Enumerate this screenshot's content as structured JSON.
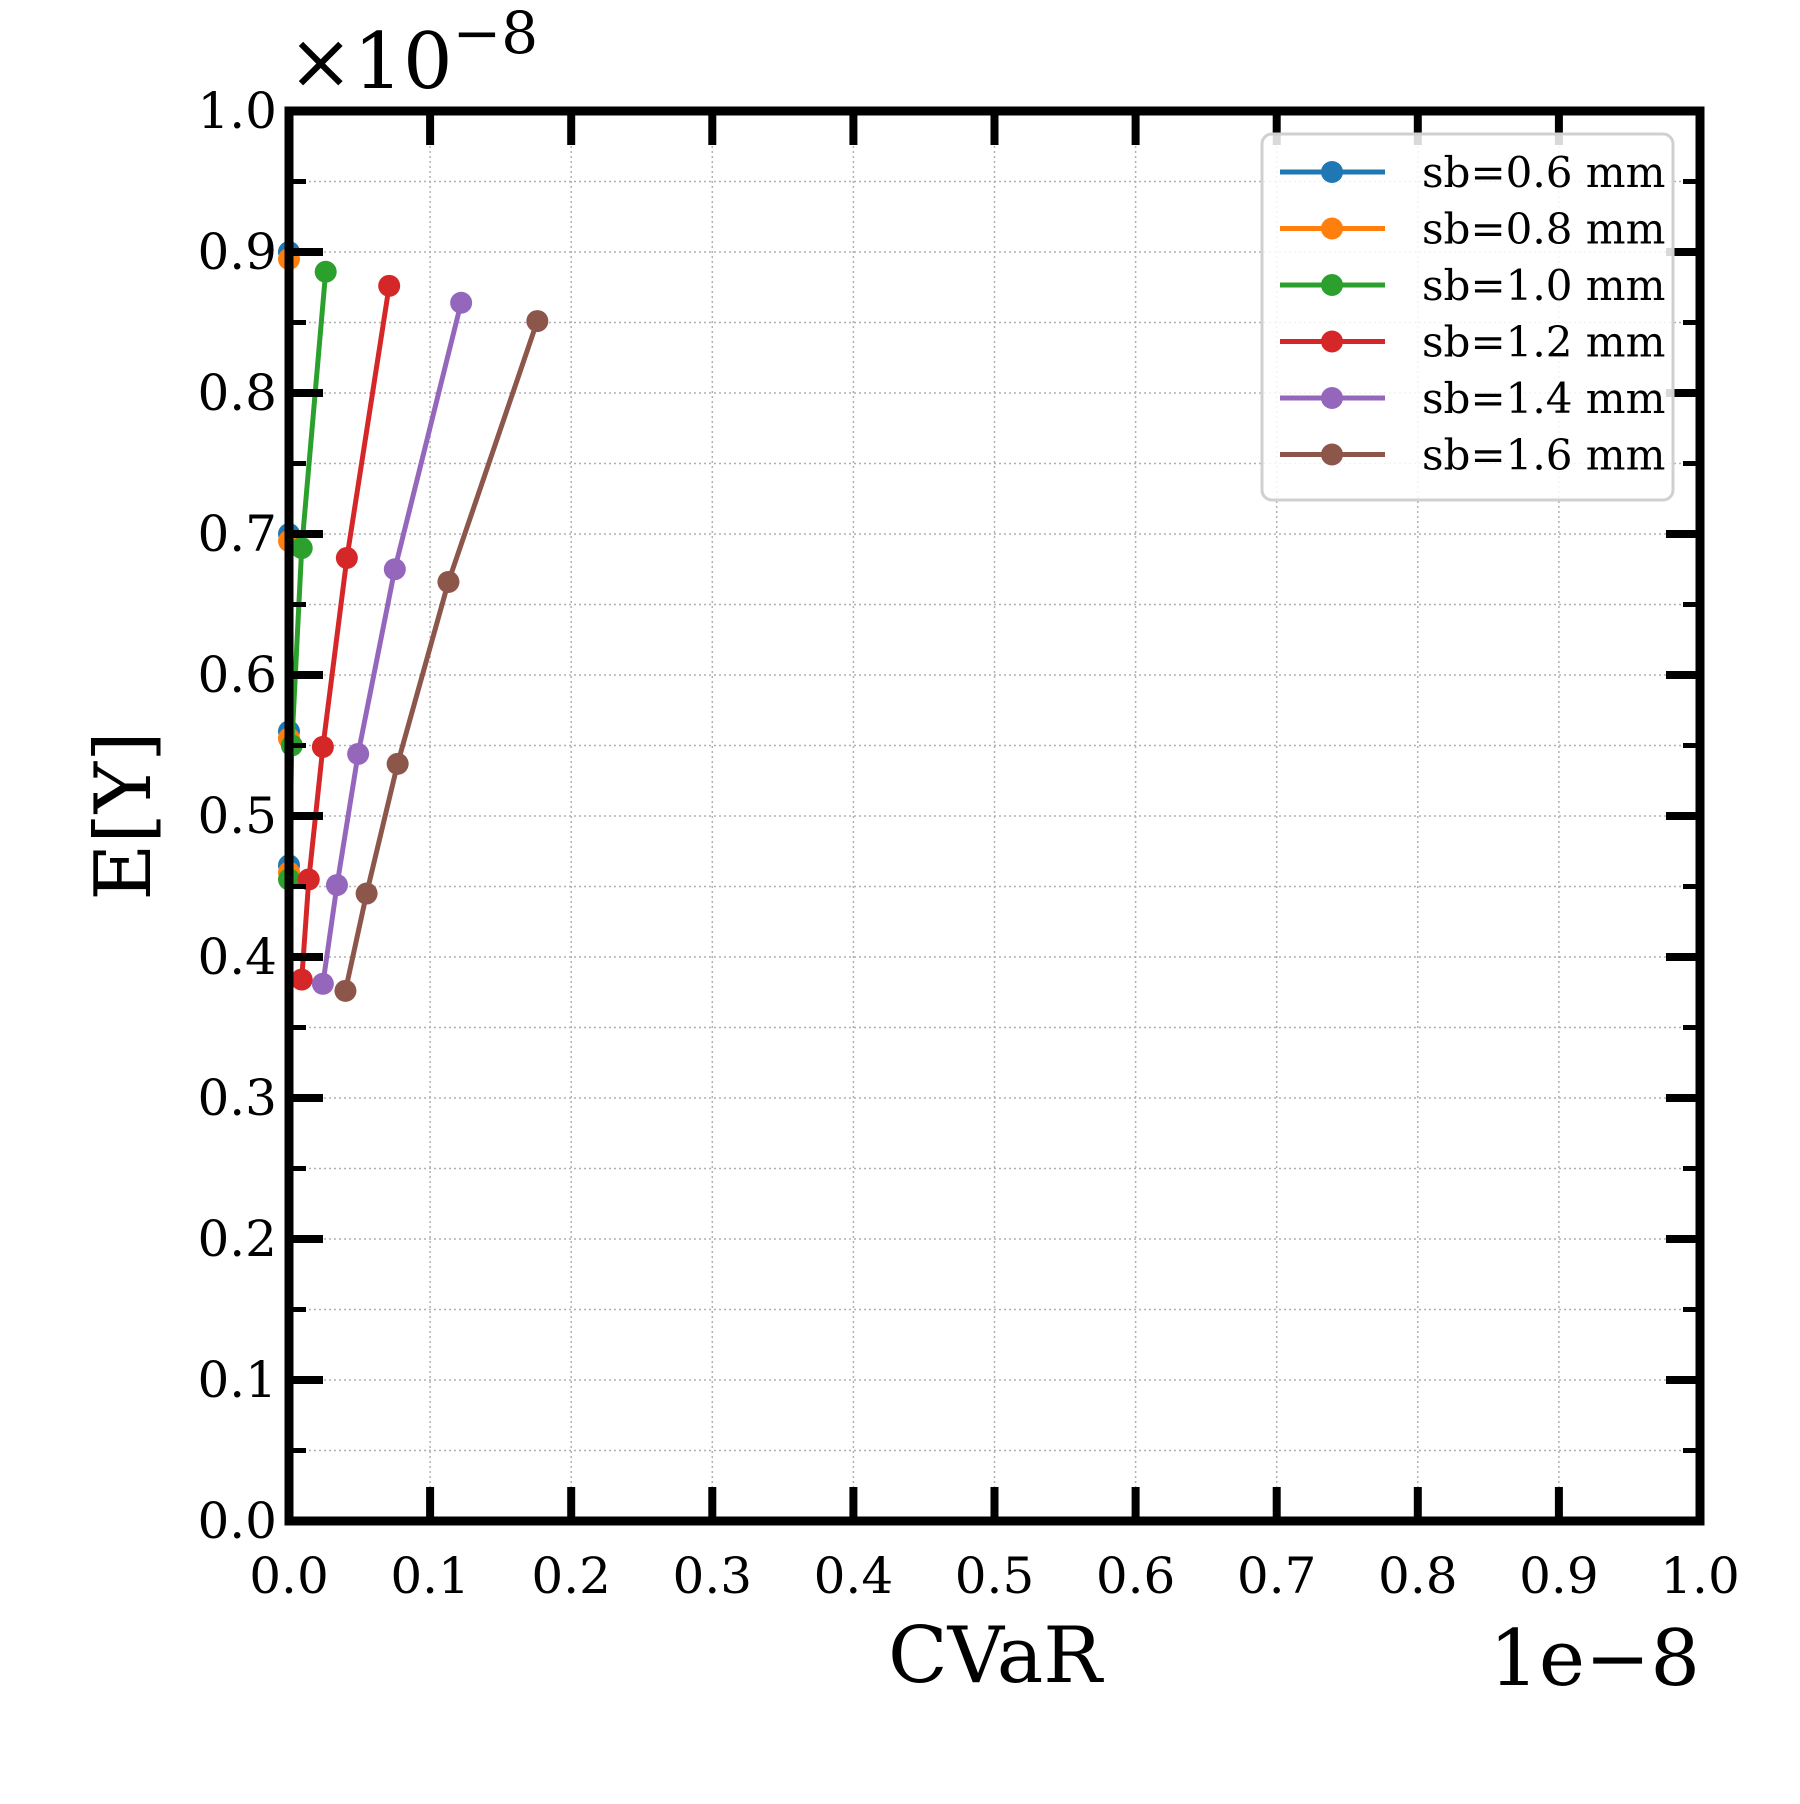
{
  "chart_data": {
    "type": "line",
    "xlabel": "CVaR",
    "ylabel": "E[Y]",
    "x_offset_text": "1e−8",
    "y_offset_text": "×10",
    "y_offset_exp": "−8",
    "xlim": [
      0.0,
      1.0
    ],
    "ylim": [
      0.0,
      1.0
    ],
    "xticks": [
      "0.0",
      "0.1",
      "0.2",
      "0.3",
      "0.4",
      "0.5",
      "0.6",
      "0.7",
      "0.8",
      "0.9",
      "1.0"
    ],
    "yticks": [
      "0.0",
      "0.1",
      "0.2",
      "0.3",
      "0.4",
      "0.5",
      "0.6",
      "0.7",
      "0.8",
      "0.9",
      "1.0"
    ],
    "grid": true,
    "legend_position": "top-right",
    "series": [
      {
        "name": "sb=0.6 mm",
        "color": "#1f77b4",
        "points": [
          [
            0.0,
            0.9
          ],
          [
            0.0,
            0.7
          ],
          [
            0.0,
            0.56
          ],
          [
            0.0,
            0.465
          ]
        ]
      },
      {
        "name": "sb=0.8 mm",
        "color": "#ff7f0e",
        "points": [
          [
            0.0,
            0.895
          ],
          [
            0.0,
            0.695
          ],
          [
            0.0,
            0.555
          ],
          [
            0.0,
            0.46
          ]
        ]
      },
      {
        "name": "sb=1.0 mm",
        "color": "#2ca02c",
        "points": [
          [
            0.026,
            0.886
          ],
          [
            0.009,
            0.69
          ],
          [
            0.002,
            0.55
          ],
          [
            0.0,
            0.455
          ]
        ]
      },
      {
        "name": "sb=1.2 mm",
        "color": "#d62728",
        "points": [
          [
            0.071,
            0.876
          ],
          [
            0.041,
            0.683
          ],
          [
            0.024,
            0.549
          ],
          [
            0.014,
            0.455
          ],
          [
            0.009,
            0.384
          ]
        ]
      },
      {
        "name": "sb=1.4 mm",
        "color": "#9467bd",
        "points": [
          [
            0.122,
            0.864
          ],
          [
            0.075,
            0.675
          ],
          [
            0.049,
            0.544
          ],
          [
            0.034,
            0.451
          ],
          [
            0.024,
            0.381
          ]
        ]
      },
      {
        "name": "sb=1.6 mm",
        "color": "#8c564b",
        "points": [
          [
            0.176,
            0.851
          ],
          [
            0.113,
            0.666
          ],
          [
            0.077,
            0.537
          ],
          [
            0.055,
            0.445
          ],
          [
            0.04,
            0.376
          ]
        ]
      }
    ]
  }
}
